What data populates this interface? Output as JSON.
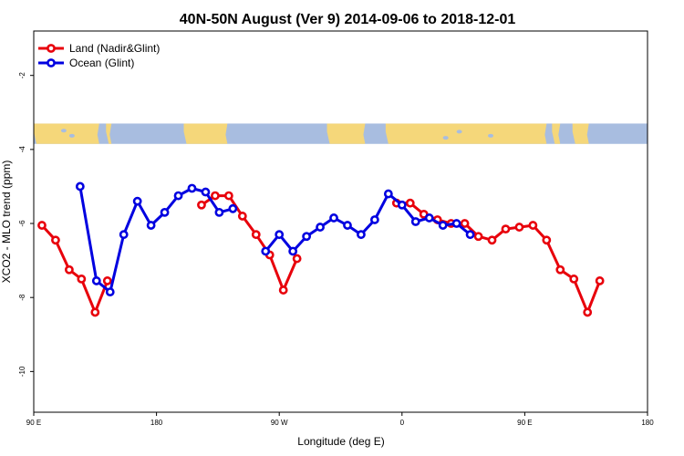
{
  "chart_data": {
    "type": "line",
    "title": "40N-50N August (Ver 9)   2014-09-06 to 2018-12-01",
    "xlabel": "Longitude (deg E)",
    "ylabel": "XCO2 - MLO trend (ppm)",
    "xlim": [
      90,
      540
    ],
    "ylim": [
      -11.1,
      -0.8
    ],
    "x_ticks": [
      {
        "value": 90,
        "label": "90 E"
      },
      {
        "value": 180,
        "label": "180"
      },
      {
        "value": 270,
        "label": "90 W"
      },
      {
        "value": 360,
        "label": "0"
      },
      {
        "value": 450,
        "label": "90 E"
      },
      {
        "value": 540,
        "label": "180"
      }
    ],
    "y_ticks": [
      {
        "value": -2,
        "label": "-2"
      },
      {
        "value": -4,
        "label": "-4"
      },
      {
        "value": -6,
        "label": "-6"
      },
      {
        "value": -8,
        "label": "-8"
      },
      {
        "value": -10,
        "label": "-10"
      }
    ],
    "grid": false,
    "legend_position": "top-left",
    "map_band": {
      "y_top": -3.3,
      "y_bottom": -3.85,
      "land_color": "#f5d77a",
      "ocean_color": "#a8bde0"
    },
    "series": [
      {
        "name": "Land (Nadir&Glint)",
        "color": "#e8000b",
        "segments": [
          [
            [
              96,
              -6.05
            ],
            [
              106,
              -6.45
            ],
            [
              116,
              -7.25
            ],
            [
              125,
              -7.5
            ],
            [
              135,
              -8.4
            ],
            [
              144,
              -7.55
            ]
          ],
          [
            [
              213,
              -5.5
            ],
            [
              223,
              -5.25
            ],
            [
              233,
              -5.25
            ],
            [
              243,
              -5.8
            ],
            [
              253,
              -6.3
            ],
            [
              263,
              -6.85
            ],
            [
              273,
              -7.8
            ],
            [
              283,
              -6.95
            ]
          ],
          [
            [
              356,
              -5.45
            ],
            [
              366,
              -5.45
            ],
            [
              376,
              -5.75
            ],
            [
              386,
              -5.9
            ],
            [
              396,
              -6.0
            ],
            [
              406,
              -6.0
            ],
            [
              416,
              -6.35
            ],
            [
              426,
              -6.45
            ],
            [
              436,
              -6.15
            ],
            [
              446,
              -6.1
            ],
            [
              456,
              -6.05
            ],
            [
              466,
              -6.45
            ],
            [
              476,
              -7.25
            ],
            [
              486,
              -7.5
            ],
            [
              496,
              -8.4
            ],
            [
              505,
              -7.55
            ]
          ]
        ]
      },
      {
        "name": "Ocean (Glint)",
        "color": "#0000e0",
        "segments": [
          [
            [
              124,
              -5.0
            ],
            [
              136,
              -7.55
            ],
            [
              146,
              -7.85
            ],
            [
              156,
              -6.3
            ],
            [
              166,
              -5.4
            ],
            [
              176,
              -6.05
            ],
            [
              186,
              -5.7
            ],
            [
              196,
              -5.25
            ],
            [
              206,
              -5.05
            ],
            [
              216,
              -5.15
            ],
            [
              226,
              -5.7
            ],
            [
              236,
              -5.6
            ]
          ],
          [
            [
              260,
              -6.75
            ],
            [
              270,
              -6.3
            ],
            [
              280,
              -6.75
            ],
            [
              290,
              -6.35
            ],
            [
              300,
              -6.1
            ],
            [
              310,
              -5.85
            ],
            [
              320,
              -6.05
            ],
            [
              330,
              -6.3
            ],
            [
              340,
              -5.9
            ],
            [
              350,
              -5.2
            ],
            [
              360,
              -5.5
            ],
            [
              370,
              -5.95
            ],
            [
              380,
              -5.85
            ],
            [
              390,
              -6.05
            ],
            [
              400,
              -6.0
            ],
            [
              410,
              -6.3
            ]
          ]
        ]
      }
    ]
  }
}
